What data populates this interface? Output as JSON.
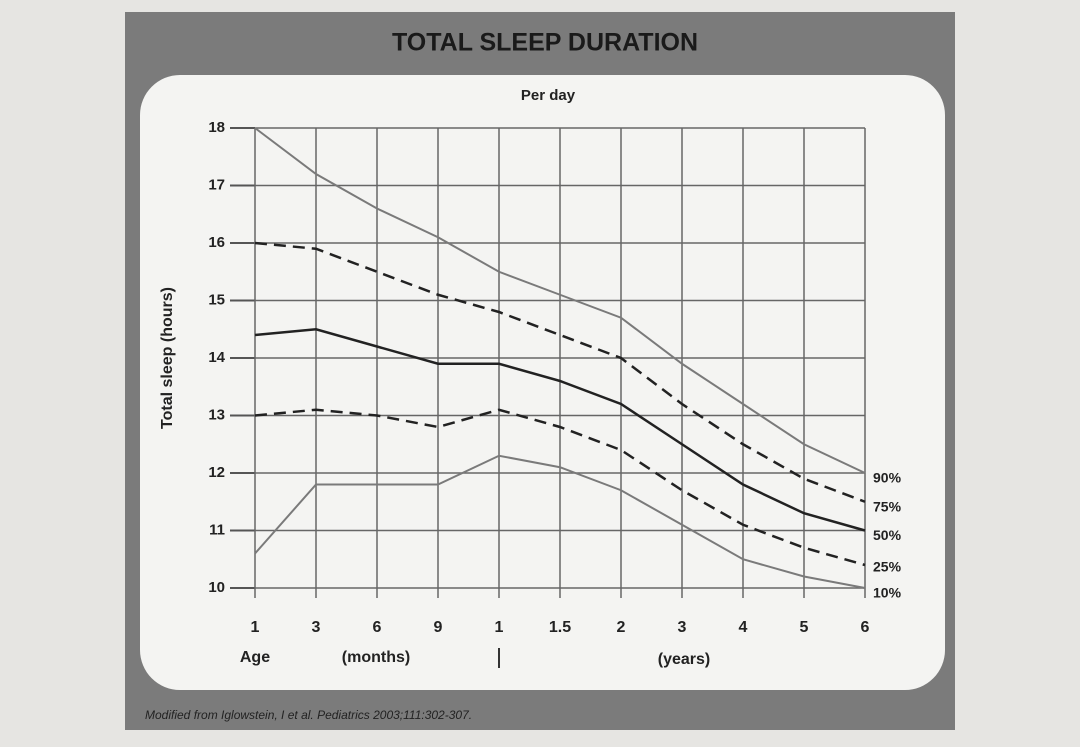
{
  "chart_data": {
    "type": "line",
    "title": "TOTAL SLEEP DURATION",
    "subtitle": "Per day",
    "y_label": "Total sleep (hours)",
    "x_label": "Age",
    "x_unit_labels": [
      "(months)",
      "(years)"
    ],
    "source": "Modified from Iglowstein, I et al. Pediatrics 2003;111:302-307.",
    "categories": [
      "1",
      "3",
      "6",
      "9",
      "1",
      "1.5",
      "2",
      "3",
      "4",
      "5",
      "6"
    ],
    "ylim": [
      10,
      18
    ],
    "yticks": [
      10,
      11,
      12,
      13,
      14,
      15,
      16,
      17,
      18
    ],
    "grid": true,
    "series": [
      {
        "name": "90%",
        "color": "#7a7a7a",
        "dashed": false,
        "values": [
          18.0,
          17.2,
          16.6,
          16.1,
          15.5,
          15.1,
          14.7,
          13.9,
          13.2,
          12.5,
          12.0
        ]
      },
      {
        "name": "75%",
        "color": "#222222",
        "dashed": true,
        "values": [
          16.0,
          15.9,
          15.5,
          15.1,
          14.8,
          14.4,
          14.0,
          13.2,
          12.5,
          11.9,
          11.5
        ]
      },
      {
        "name": "50%",
        "color": "#222222",
        "dashed": false,
        "values": [
          14.4,
          14.5,
          14.2,
          13.9,
          13.9,
          13.6,
          13.2,
          12.5,
          11.8,
          11.3,
          11.0
        ]
      },
      {
        "name": "25%",
        "color": "#222222",
        "dashed": true,
        "values": [
          13.0,
          13.1,
          13.0,
          12.8,
          13.1,
          12.8,
          12.4,
          11.7,
          11.1,
          10.7,
          10.4
        ]
      },
      {
        "name": "10%",
        "color": "#7a7a7a",
        "dashed": false,
        "values": [
          10.6,
          11.8,
          11.8,
          11.8,
          12.3,
          12.1,
          11.7,
          11.1,
          10.5,
          10.2,
          10.0
        ]
      }
    ]
  }
}
